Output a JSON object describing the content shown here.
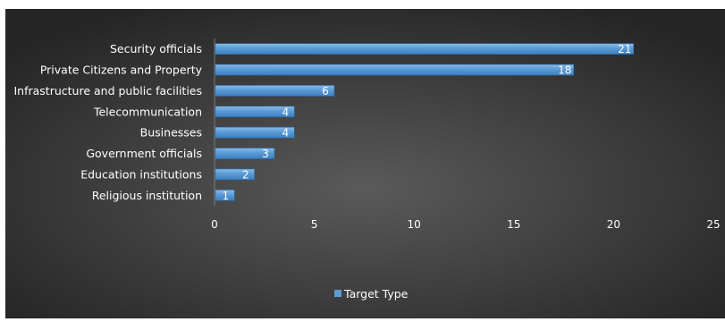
{
  "chart_data": {
    "type": "bar",
    "orientation": "horizontal",
    "categories": [
      "Security officials",
      "Private Citizens and Property",
      "Infrastructure and public facilities",
      "Telecommunication",
      "Businesses",
      "Government officials",
      "Education institutions",
      "Religious institution"
    ],
    "series": [
      {
        "name": "Target Type",
        "values": [
          21,
          18,
          6,
          4,
          4,
          3,
          2,
          1
        ]
      }
    ],
    "x_ticks": [
      0,
      5,
      10,
      15,
      20,
      25
    ],
    "xlim": [
      0,
      25
    ],
    "data_labels": true,
    "grid": true,
    "legend": "bottom",
    "colors": {
      "bar": "#5b9bd5",
      "bar_edge": "#2f6aa6",
      "background_inner": "#5a5a5a",
      "background_outer": "#262626",
      "text": "#ffffff",
      "gridline": "#7a7a7a"
    }
  }
}
